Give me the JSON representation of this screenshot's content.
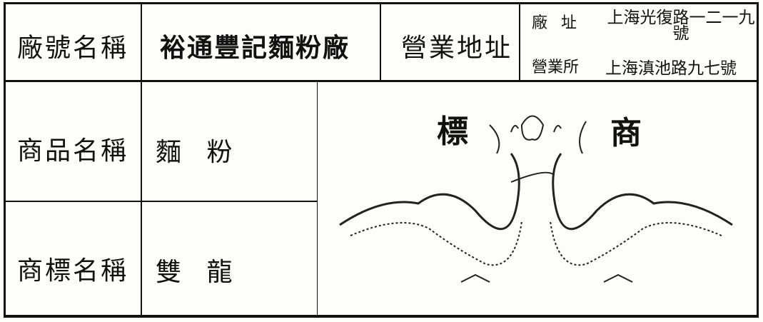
{
  "form": {
    "row1": {
      "factory_name_label": "廠號名稱",
      "factory_name": "裕通豐記麵粉廠",
      "address_label": "營業地址",
      "addresses": [
        {
          "label": "廠 址",
          "value": "上海光復路一二一九號"
        },
        {
          "label": "營業所",
          "value": "上海滇池路九七號"
        }
      ]
    },
    "product_label": "商品名稱",
    "product": "麵 粉",
    "trademark_label": "商標名稱",
    "trademark": "雙 龍",
    "logo": {
      "left_char": "標",
      "right_char": "商"
    }
  }
}
